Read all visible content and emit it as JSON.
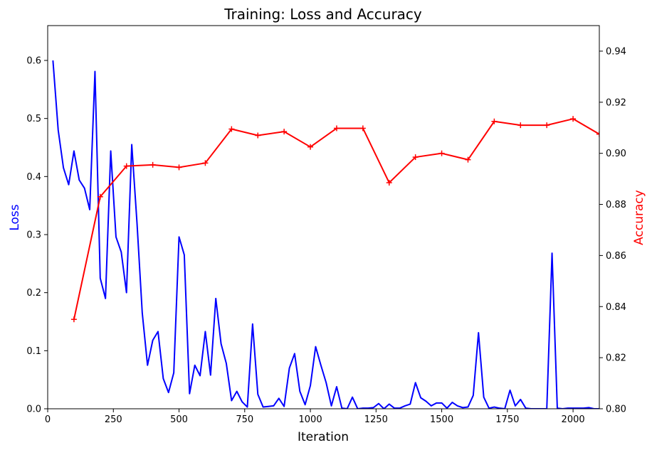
{
  "chart_data": {
    "type": "line",
    "title": "Training: Loss and Accuracy",
    "xlabel": "Iteration",
    "ylabel_left": "Loss",
    "ylabel_right": "Accuracy",
    "xlim": [
      0,
      2100
    ],
    "ylim_left": [
      0,
      0.66
    ],
    "ylim_right": [
      0.8,
      0.95
    ],
    "x_ticks": [
      0,
      250,
      500,
      750,
      1000,
      1250,
      1500,
      1750,
      2000
    ],
    "y_left_ticks": [
      0.0,
      0.1,
      0.2,
      0.3,
      0.4,
      0.5,
      0.6
    ],
    "y_right_ticks": [
      0.8,
      0.82,
      0.84,
      0.86,
      0.88,
      0.9,
      0.92,
      0.94
    ],
    "grid": false,
    "colors": {
      "loss": "#0000ff",
      "accuracy": "#ff0000",
      "axis_left_label": "#0000ff",
      "axis_right_label": "#ff0000"
    },
    "series": [
      {
        "axis": "left",
        "marker": "none",
        "x": [
          20,
          40,
          60,
          80,
          100,
          120,
          140,
          160,
          180,
          200,
          220,
          240,
          260,
          280,
          300,
          320,
          340,
          360,
          380,
          400,
          420,
          440,
          460,
          480,
          500,
          520,
          540,
          560,
          580,
          600,
          620,
          640,
          660,
          680,
          700,
          720,
          740,
          760,
          780,
          800,
          820,
          840,
          860,
          880,
          900,
          920,
          940,
          960,
          980,
          1000,
          1020,
          1040,
          1060,
          1080,
          1100,
          1120,
          1140,
          1160,
          1180,
          1200,
          1220,
          1240,
          1260,
          1280,
          1300,
          1320,
          1340,
          1360,
          1380,
          1400,
          1420,
          1440,
          1460,
          1480,
          1500,
          1520,
          1540,
          1560,
          1580,
          1600,
          1620,
          1640,
          1660,
          1680,
          1700,
          1720,
          1740,
          1760,
          1780,
          1800,
          1820,
          1840,
          1860,
          1880,
          1900,
          1920,
          1940,
          1960,
          1980,
          2000,
          2020,
          2040,
          2060,
          2080,
          2100
        ],
        "values": [
          0.6,
          0.48,
          0.415,
          0.386,
          0.444,
          0.394,
          0.38,
          0.343,
          0.581,
          0.225,
          0.19,
          0.444,
          0.296,
          0.27,
          0.2,
          0.455,
          0.32,
          0.165,
          0.075,
          0.118,
          0.133,
          0.052,
          0.028,
          0.062,
          0.296,
          0.265,
          0.026,
          0.075,
          0.057,
          0.133,
          0.058,
          0.19,
          0.112,
          0.078,
          0.014,
          0.03,
          0.012,
          0.003,
          0.146,
          0.025,
          0.003,
          0.004,
          0.005,
          0.018,
          0.004,
          0.07,
          0.095,
          0.03,
          0.007,
          0.04,
          0.107,
          0.075,
          0.045,
          0.005,
          0.038,
          0.001,
          0.0,
          0.02,
          0.0,
          0.001,
          0.001,
          0.002,
          0.009,
          0.0,
          0.008,
          0.001,
          0.001,
          0.005,
          0.008,
          0.045,
          0.019,
          0.013,
          0.005,
          0.01,
          0.01,
          0.001,
          0.011,
          0.005,
          0.002,
          0.003,
          0.023,
          0.131,
          0.02,
          0.001,
          0.003,
          0.001,
          0.0,
          0.032,
          0.005,
          0.016,
          0.001,
          0.0,
          0.0,
          0.0,
          0.0,
          0.268,
          0.001,
          0.0,
          0.001,
          0.001,
          0.001,
          0.001,
          0.002,
          0.0,
          0.0
        ]
      },
      {
        "axis": "right",
        "marker": "+",
        "x": [
          100,
          200,
          300,
          400,
          500,
          600,
          700,
          800,
          900,
          1000,
          1100,
          1200,
          1300,
          1400,
          1500,
          1600,
          1700,
          1800,
          1900,
          2000,
          2100
        ],
        "values": [
          0.835,
          0.883,
          0.895,
          0.8955,
          0.8945,
          0.8962,
          0.9095,
          0.907,
          0.9085,
          0.9025,
          0.9098,
          0.9098,
          0.8885,
          0.8985,
          0.9,
          0.8975,
          0.9125,
          0.911,
          0.911,
          0.9135,
          0.9075
        ]
      }
    ]
  }
}
